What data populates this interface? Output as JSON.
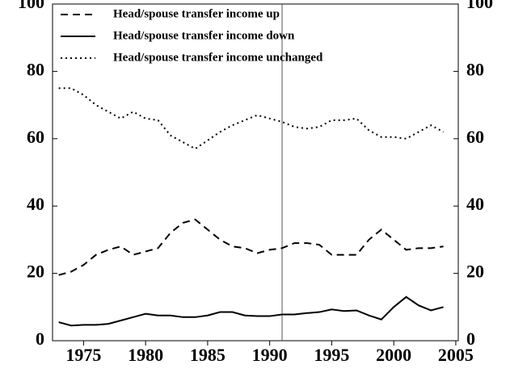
{
  "chart_data": {
    "type": "line",
    "x": [
      1973,
      1974,
      1975,
      1976,
      1977,
      1978,
      1979,
      1980,
      1981,
      1982,
      1983,
      1984,
      1985,
      1986,
      1987,
      1988,
      1989,
      1990,
      1991,
      1992,
      1993,
      1994,
      1995,
      1996,
      1997,
      1998,
      1999,
      2000,
      2001,
      2002,
      2003,
      2004
    ],
    "series": [
      {
        "name": "Head/spouse transfer income up",
        "color": "#000000",
        "dash": "dashed",
        "values": [
          19.5,
          20.5,
          22.5,
          25.5,
          27,
          28,
          25.5,
          26.5,
          27.5,
          32,
          35,
          36,
          33,
          30,
          28,
          27.5,
          26,
          27,
          27.5,
          29,
          29,
          28.5,
          25.5,
          25.5,
          25.5,
          30,
          33,
          30,
          27,
          27.5,
          27.5,
          28
        ]
      },
      {
        "name": "Head/spouse transfer income down",
        "color": "#000000",
        "dash": "solid",
        "values": [
          5.5,
          4.5,
          4.7,
          4.7,
          5,
          6,
          7,
          8,
          7.5,
          7.5,
          7,
          7,
          7.5,
          8.5,
          8.5,
          7.5,
          7.3,
          7.3,
          7.8,
          7.8,
          8.2,
          8.5,
          9.3,
          8.8,
          9,
          7.5,
          6.3,
          10,
          13,
          10.5,
          9,
          10
        ]
      },
      {
        "name": "Head/spouse transfer income unchanged",
        "color": "#000000",
        "dash": "dotted",
        "values": [
          75,
          75,
          73,
          70,
          68,
          66,
          68,
          66,
          65.5,
          61,
          59,
          57,
          59.5,
          62,
          64,
          65.5,
          67,
          66,
          65,
          63.5,
          63,
          63.5,
          65.5,
          65.5,
          66,
          62.5,
          60.5,
          60.5,
          60,
          62,
          64,
          62
        ]
      }
    ],
    "xlim": [
      1972.5,
      2005.2
    ],
    "xticks": [
      1975,
      1980,
      1985,
      1990,
      1995,
      2000,
      2005
    ],
    "ylim": [
      0,
      100
    ],
    "yticks": [
      0,
      20,
      40,
      60,
      80,
      100
    ],
    "y2lim": [
      0,
      100
    ],
    "y2ticks": [
      0,
      20,
      40,
      60,
      80,
      100
    ],
    "vline": 1991,
    "legend": "top-left"
  }
}
